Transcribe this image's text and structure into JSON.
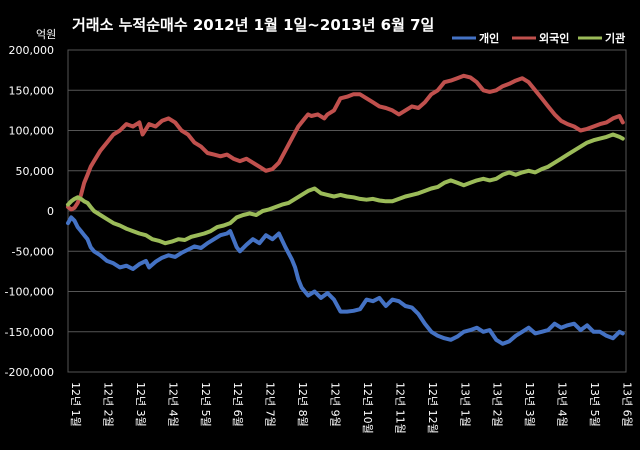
{
  "chart_data": {
    "type": "line",
    "title": "거래소  누적순매수 2012년 1월 1일~2013년 6월 7일",
    "unit_label": "억원",
    "ylim": [
      -200000,
      200000
    ],
    "y_ticks": [
      "200,000",
      "150,000",
      "100,000",
      "50,000",
      "0",
      "-50,000",
      "-100,000",
      "-150,000",
      "-200,000"
    ],
    "y_tick_values": [
      200000,
      150000,
      100000,
      50000,
      0,
      -50000,
      -100000,
      -150000,
      -200000
    ],
    "x_ticks": [
      "12년 1월",
      "12년 2월",
      "12년 3월",
      "12년 4월",
      "12년 5월",
      "12년 6월",
      "12년 7월",
      "12년 8월",
      "12년 9월",
      "12년 10월",
      "12년 11월",
      "12년 12월",
      "13년 1월",
      "13년 2월",
      "13년 3월",
      "13년 4월",
      "13년 5월",
      "13년 6월"
    ],
    "x_tick_positions": [
      0,
      1,
      2,
      3,
      4,
      5,
      6,
      7,
      8,
      9,
      10,
      11,
      12,
      13,
      14,
      15,
      16,
      17
    ],
    "xlim": [
      0,
      17.2
    ],
    "grid": true,
    "legend_position": "top-right",
    "series": [
      {
        "name": "개인",
        "color": "#4472C4",
        "x": [
          0,
          0.1,
          0.2,
          0.3,
          0.4,
          0.5,
          0.6,
          0.7,
          0.8,
          1.0,
          1.2,
          1.4,
          1.6,
          1.8,
          2.0,
          2.2,
          2.4,
          2.5,
          2.7,
          2.9,
          3.1,
          3.3,
          3.5,
          3.7,
          3.9,
          4.1,
          4.3,
          4.5,
          4.7,
          4.9,
          5.0,
          5.1,
          5.2,
          5.3,
          5.5,
          5.7,
          5.9,
          6.1,
          6.3,
          6.5,
          6.7,
          6.9,
          7.0,
          7.1,
          7.2,
          7.3,
          7.4,
          7.6,
          7.8,
          8.0,
          8.2,
          8.4,
          8.6,
          8.8,
          9.0,
          9.2,
          9.4,
          9.6,
          9.8,
          10.0,
          10.2,
          10.4,
          10.6,
          10.8,
          11.0,
          11.2,
          11.4,
          11.6,
          11.8,
          12.0,
          12.2,
          12.4,
          12.6,
          12.8,
          13.0,
          13.2,
          13.4,
          13.6,
          13.8,
          14.0,
          14.2,
          14.4,
          14.6,
          14.8,
          15.0,
          15.2,
          15.4,
          15.6,
          15.8,
          16.0,
          16.2,
          16.4,
          16.6,
          16.8,
          17.0,
          17.1
        ],
        "values": [
          -15000,
          -8000,
          -12000,
          -20000,
          -25000,
          -30000,
          -35000,
          -45000,
          -50000,
          -55000,
          -62000,
          -65000,
          -70000,
          -68000,
          -72000,
          -66000,
          -62000,
          -70000,
          -63000,
          -58000,
          -55000,
          -57000,
          -52000,
          -48000,
          -44000,
          -46000,
          -40000,
          -35000,
          -30000,
          -28000,
          -25000,
          -35000,
          -45000,
          -50000,
          -42000,
          -35000,
          -40000,
          -30000,
          -35000,
          -28000,
          -45000,
          -60000,
          -70000,
          -85000,
          -95000,
          -100000,
          -105000,
          -100000,
          -108000,
          -102000,
          -110000,
          -125000,
          -125000,
          -124000,
          -122000,
          -110000,
          -112000,
          -108000,
          -118000,
          -110000,
          -112000,
          -118000,
          -120000,
          -128000,
          -140000,
          -150000,
          -155000,
          -158000,
          -160000,
          -156000,
          -150000,
          -148000,
          -145000,
          -150000,
          -148000,
          -160000,
          -165000,
          -162000,
          -155000,
          -150000,
          -145000,
          -152000,
          -150000,
          -148000,
          -140000,
          -145000,
          -142000,
          -140000,
          -148000,
          -142000,
          -150000,
          -150000,
          -155000,
          -158000,
          -150000,
          -152000
        ]
      },
      {
        "name": "외국인",
        "color": "#C0504D",
        "x": [
          0,
          0.1,
          0.2,
          0.3,
          0.4,
          0.5,
          0.6,
          0.7,
          0.8,
          1.0,
          1.2,
          1.4,
          1.6,
          1.8,
          2.0,
          2.2,
          2.3,
          2.5,
          2.7,
          2.9,
          3.1,
          3.3,
          3.5,
          3.7,
          3.9,
          4.1,
          4.3,
          4.5,
          4.7,
          4.9,
          5.1,
          5.3,
          5.5,
          5.7,
          5.9,
          6.1,
          6.3,
          6.5,
          6.7,
          6.9,
          7.1,
          7.2,
          7.3,
          7.4,
          7.5,
          7.7,
          7.9,
          8.0,
          8.2,
          8.4,
          8.6,
          8.8,
          9.0,
          9.2,
          9.4,
          9.6,
          9.8,
          10.0,
          10.2,
          10.4,
          10.6,
          10.8,
          11.0,
          11.2,
          11.4,
          11.6,
          11.8,
          12.0,
          12.2,
          12.4,
          12.6,
          12.8,
          13.0,
          13.2,
          13.4,
          13.6,
          13.8,
          14.0,
          14.2,
          14.4,
          14.6,
          14.8,
          15.0,
          15.2,
          15.4,
          15.6,
          15.8,
          16.0,
          16.2,
          16.4,
          16.6,
          16.8,
          17.0,
          17.1
        ],
        "values": [
          5000,
          2000,
          4000,
          10000,
          20000,
          35000,
          45000,
          55000,
          62000,
          75000,
          85000,
          95000,
          100000,
          108000,
          105000,
          110000,
          95000,
          108000,
          105000,
          112000,
          115000,
          110000,
          100000,
          95000,
          85000,
          80000,
          72000,
          70000,
          68000,
          70000,
          65000,
          62000,
          65000,
          60000,
          55000,
          50000,
          52000,
          60000,
          75000,
          90000,
          105000,
          110000,
          115000,
          120000,
          118000,
          120000,
          115000,
          120000,
          125000,
          140000,
          142000,
          145000,
          145000,
          140000,
          135000,
          130000,
          128000,
          125000,
          120000,
          125000,
          130000,
          128000,
          135000,
          145000,
          150000,
          160000,
          162000,
          165000,
          168000,
          166000,
          160000,
          150000,
          148000,
          150000,
          155000,
          158000,
          162000,
          165000,
          160000,
          150000,
          140000,
          130000,
          120000,
          112000,
          108000,
          105000,
          100000,
          102000,
          105000,
          108000,
          110000,
          115000,
          118000,
          110000
        ]
      },
      {
        "name": "기관",
        "color": "#9BBB59",
        "x": [
          0,
          0.1,
          0.2,
          0.3,
          0.4,
          0.5,
          0.6,
          0.7,
          0.8,
          1.0,
          1.2,
          1.4,
          1.6,
          1.8,
          2.0,
          2.2,
          2.4,
          2.6,
          2.8,
          3.0,
          3.2,
          3.4,
          3.6,
          3.8,
          4.0,
          4.2,
          4.4,
          4.6,
          4.8,
          5.0,
          5.2,
          5.4,
          5.6,
          5.8,
          6.0,
          6.2,
          6.4,
          6.6,
          6.8,
          7.0,
          7.2,
          7.4,
          7.6,
          7.8,
          8.0,
          8.2,
          8.4,
          8.6,
          8.8,
          9.0,
          9.2,
          9.4,
          9.6,
          9.8,
          10.0,
          10.2,
          10.4,
          10.6,
          10.8,
          11.0,
          11.2,
          11.4,
          11.6,
          11.8,
          12.0,
          12.2,
          12.4,
          12.6,
          12.8,
          13.0,
          13.2,
          13.4,
          13.6,
          13.8,
          14.0,
          14.2,
          14.4,
          14.6,
          14.8,
          15.0,
          15.2,
          15.4,
          15.6,
          15.8,
          16.0,
          16.2,
          16.4,
          16.6,
          16.8,
          17.0,
          17.1
        ],
        "values": [
          8000,
          12000,
          15000,
          17000,
          15000,
          12000,
          10000,
          5000,
          0,
          -5000,
          -10000,
          -15000,
          -18000,
          -22000,
          -25000,
          -28000,
          -30000,
          -35000,
          -37000,
          -40000,
          -38000,
          -35000,
          -36000,
          -32000,
          -30000,
          -28000,
          -25000,
          -20000,
          -18000,
          -15000,
          -8000,
          -5000,
          -3000,
          -5000,
          0,
          2000,
          5000,
          8000,
          10000,
          15000,
          20000,
          25000,
          28000,
          22000,
          20000,
          18000,
          20000,
          18000,
          17000,
          15000,
          14000,
          15000,
          13000,
          12000,
          12000,
          15000,
          18000,
          20000,
          22000,
          25000,
          28000,
          30000,
          35000,
          38000,
          35000,
          32000,
          35000,
          38000,
          40000,
          38000,
          40000,
          45000,
          48000,
          45000,
          48000,
          50000,
          48000,
          52000,
          55000,
          60000,
          65000,
          70000,
          75000,
          80000,
          85000,
          88000,
          90000,
          92000,
          95000,
          92000,
          90000
        ]
      }
    ]
  }
}
